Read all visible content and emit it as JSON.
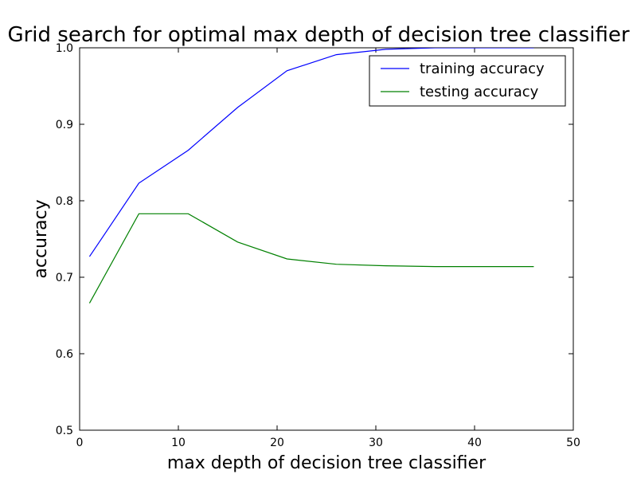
{
  "chart_data": {
    "type": "line",
    "title": "Grid search for optimal max depth of decision tree classifier",
    "xlabel": "max depth of decision tree classifier",
    "ylabel": "accuracy",
    "xlim": [
      0,
      50
    ],
    "ylim": [
      0.5,
      1.0
    ],
    "xticks": [
      "0",
      "10",
      "20",
      "30",
      "40",
      "50"
    ],
    "yticks": [
      "0.5",
      "0.6",
      "0.7",
      "0.8",
      "0.9",
      "1.0"
    ],
    "grid": false,
    "legend_position": "top-right",
    "x": [
      1,
      6,
      11,
      16,
      21,
      26,
      31,
      36,
      41,
      46
    ],
    "series": [
      {
        "name": "training accuracy",
        "color": "#0000ff",
        "values": [
          0.727,
          0.823,
          0.866,
          0.922,
          0.97,
          0.991,
          0.998,
          1.0,
          1.0,
          1.0
        ]
      },
      {
        "name": "testing accuracy",
        "color": "#008000",
        "values": [
          0.666,
          0.783,
          0.783,
          0.746,
          0.724,
          0.717,
          0.715,
          0.714,
          0.714,
          0.714
        ]
      }
    ]
  }
}
